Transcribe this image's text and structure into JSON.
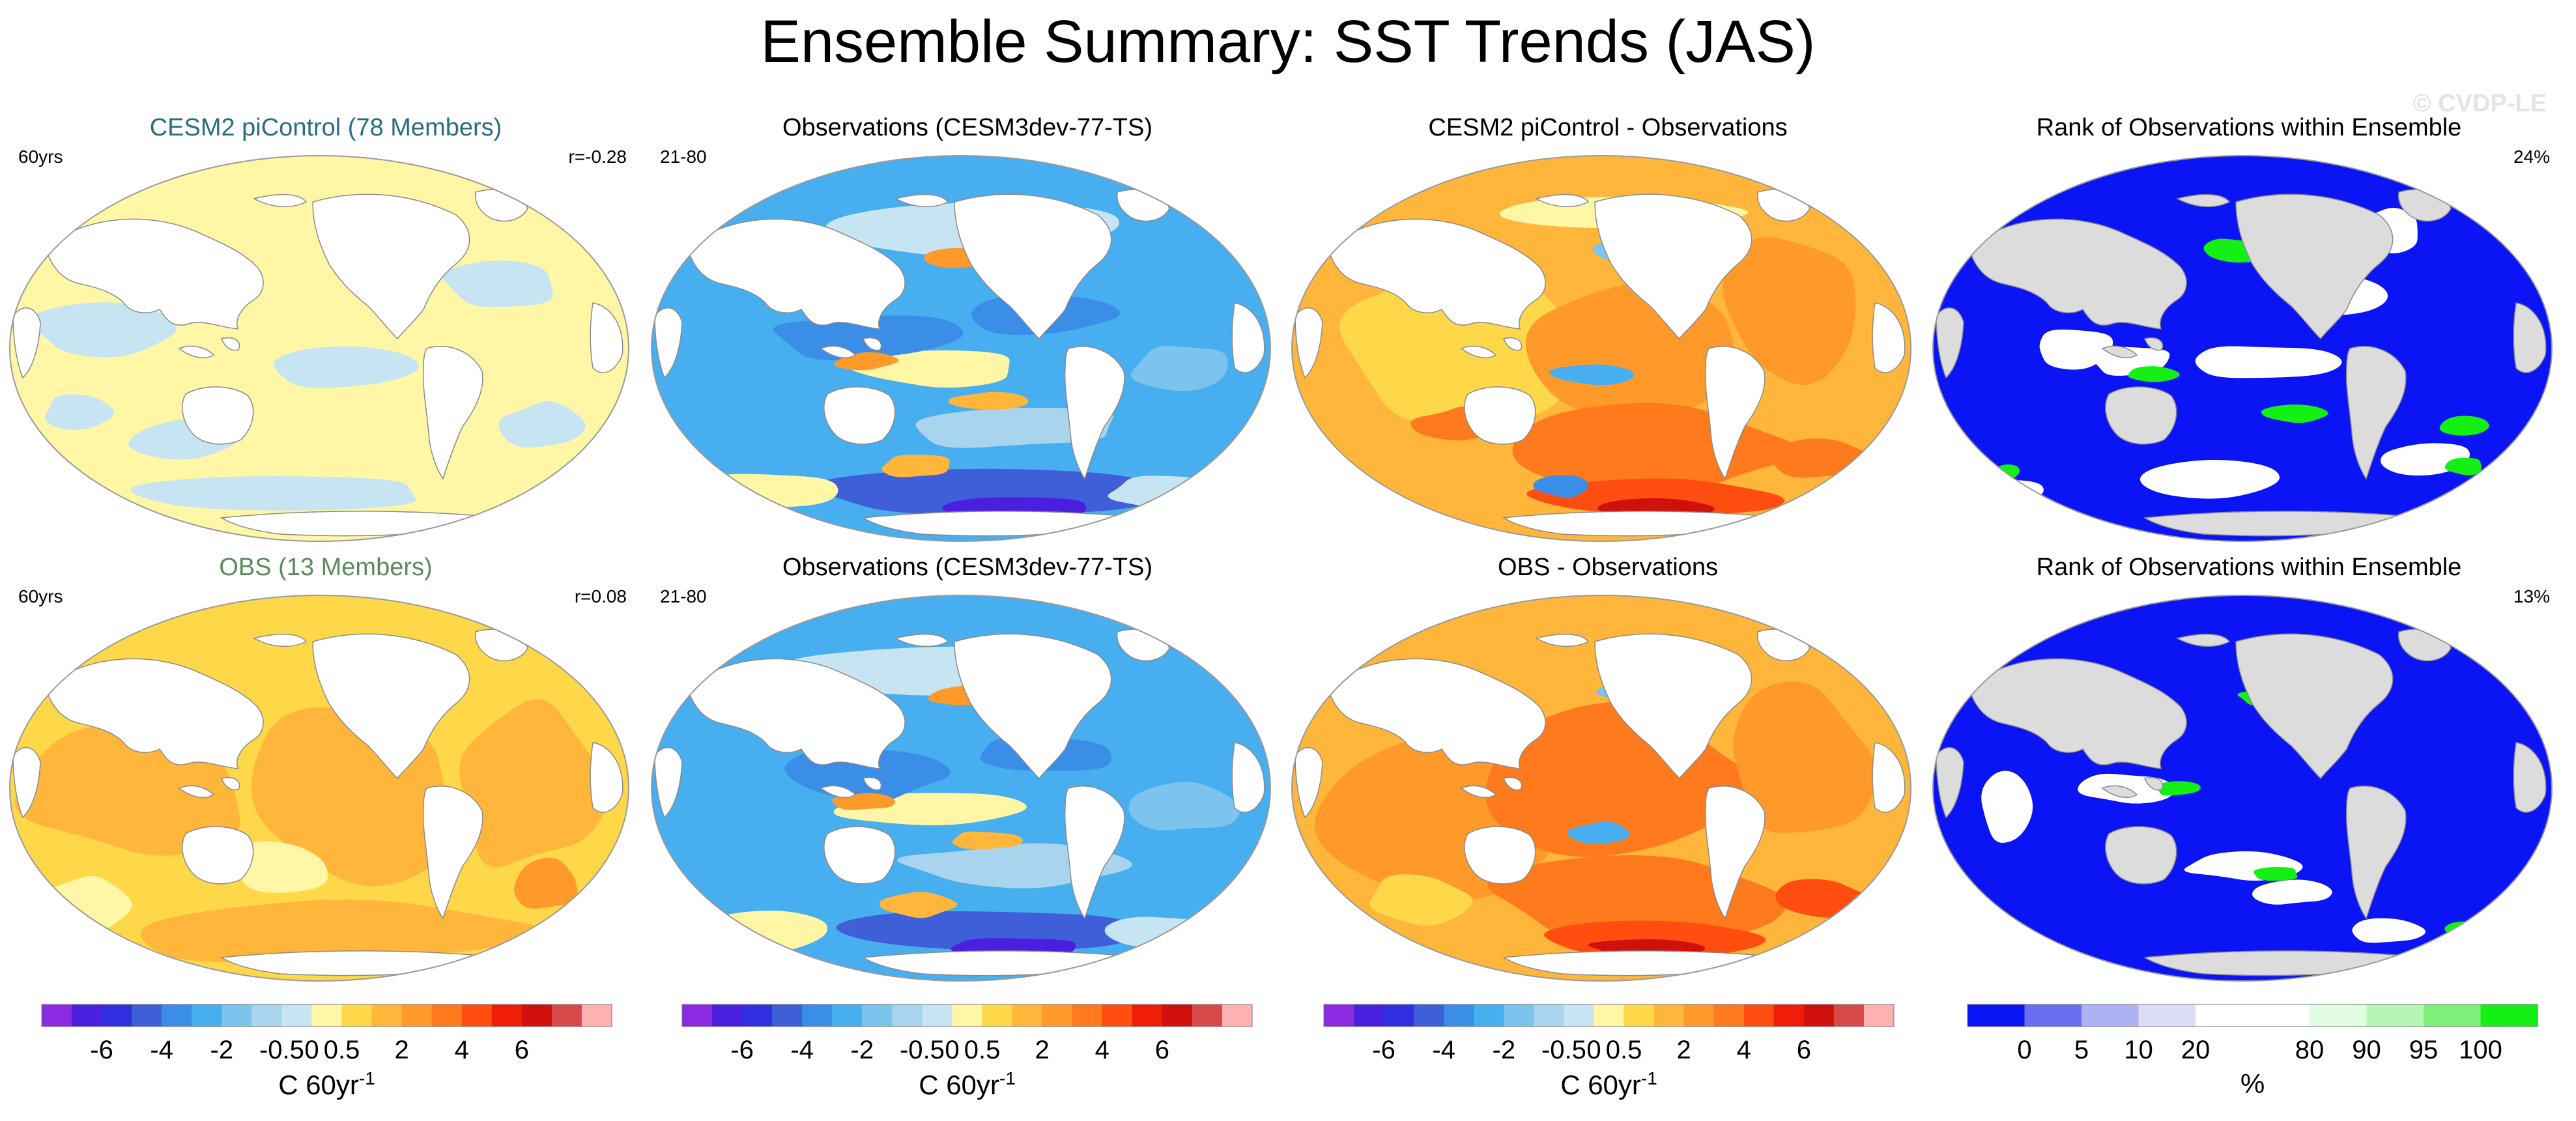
{
  "title": "Ensemble Summary: SST Trends (JAS)",
  "watermark": "© CVDP-LE",
  "panels": [
    {
      "title": "CESM2 piControl (78 Members)",
      "title_color": "#2a6e7e",
      "left": "60yrs",
      "right": "r=-0.28",
      "kind": "ens1"
    },
    {
      "title": "Observations (CESM3dev-77-TS)",
      "title_color": "#000000",
      "left": "21-80",
      "right": "",
      "kind": "obs"
    },
    {
      "title": "CESM2 piControl - Observations",
      "title_color": "#000000",
      "left": "",
      "right": "",
      "kind": "diff1"
    },
    {
      "title": "Rank of Observations within Ensemble",
      "title_color": "#000000",
      "left": "",
      "right": "24%",
      "kind": "rank1"
    },
    {
      "title": "OBS (13 Members)",
      "title_color": "#5a8a5e",
      "left": "60yrs",
      "right": "r=0.08",
      "kind": "ens2"
    },
    {
      "title": "Observations (CESM3dev-77-TS)",
      "title_color": "#000000",
      "left": "21-80",
      "right": "",
      "kind": "obs"
    },
    {
      "title": "OBS - Observations",
      "title_color": "#000000",
      "left": "",
      "right": "",
      "kind": "diff2"
    },
    {
      "title": "Rank of Observations within Ensemble",
      "title_color": "#000000",
      "left": "",
      "right": "13%",
      "kind": "rank2"
    }
  ],
  "colorbars": [
    {
      "label": "C 60yr",
      "superscript": "-1",
      "ticks": [
        "-6",
        "-4",
        "-2",
        "-0.5",
        "0",
        "0.5",
        "2",
        "4",
        "6"
      ],
      "colors": [
        "#8a2be2",
        "#4b1fe0",
        "#3030e0",
        "#3e5fd8",
        "#3a8ee8",
        "#47aef0",
        "#7cc4ee",
        "#a9d4ee",
        "#c7e4f2",
        "#fff6a6",
        "#ffd84a",
        "#ffb63a",
        "#ff9a2a",
        "#ff7a1c",
        "#ff4e10",
        "#f01e08",
        "#d0100a",
        "#d84848",
        "#ffb0b0"
      ]
    },
    {
      "label": "C 60yr",
      "superscript": "-1",
      "ticks": [
        "-6",
        "-4",
        "-2",
        "-0.5",
        "0",
        "0.5",
        "2",
        "4",
        "6"
      ],
      "colors": [
        "#8a2be2",
        "#4b1fe0",
        "#3030e0",
        "#3e5fd8",
        "#3a8ee8",
        "#47aef0",
        "#7cc4ee",
        "#a9d4ee",
        "#c7e4f2",
        "#fff6a6",
        "#ffd84a",
        "#ffb63a",
        "#ff9a2a",
        "#ff7a1c",
        "#ff4e10",
        "#f01e08",
        "#d0100a",
        "#d84848",
        "#ffb0b0"
      ]
    },
    {
      "label": "C 60yr",
      "superscript": "-1",
      "ticks": [
        "-6",
        "-4",
        "-2",
        "-0.5",
        "0",
        "0.5",
        "2",
        "4",
        "6"
      ],
      "colors": [
        "#8a2be2",
        "#4b1fe0",
        "#3030e0",
        "#3e5fd8",
        "#3a8ee8",
        "#47aef0",
        "#7cc4ee",
        "#a9d4ee",
        "#c7e4f2",
        "#fff6a6",
        "#ffd84a",
        "#ffb63a",
        "#ff9a2a",
        "#ff7a1c",
        "#ff4e10",
        "#f01e08",
        "#d0100a",
        "#d84848",
        "#ffb0b0"
      ]
    },
    {
      "label": "%",
      "superscript": "",
      "ticks": [
        "0",
        "5",
        "10",
        "20",
        "80",
        "90",
        "95",
        "100"
      ],
      "colors": [
        "#0a14f5",
        "#6a6ef0",
        "#aeb2f2",
        "#dcdcf6",
        "#ffffff",
        "#ffffff",
        "#e2fce2",
        "#b6f6b4",
        "#7ef07a",
        "#14f014"
      ]
    }
  ],
  "palette": {
    "land": "#ffffff",
    "rank_land": "#dcdcdc",
    "coast": "#8a8a8a",
    "outline": "#9a9a9a"
  }
}
